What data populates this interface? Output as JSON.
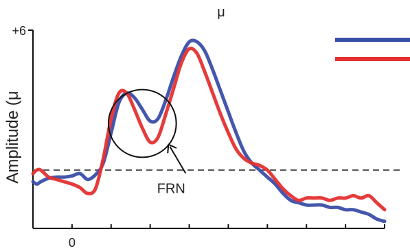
{
  "chart_data": {
    "type": "line",
    "title": "μ",
    "ylabel": "Amplitude (μ",
    "y_tick_labels": [
      {
        "value": 6,
        "label": "+6"
      }
    ],
    "x_tick_labels": [
      {
        "value": 0,
        "label": "0"
      }
    ],
    "xlim": [
      -100,
      800
    ],
    "ylim": [
      -2.5,
      6
    ],
    "baseline": {
      "value": 0,
      "style": "dashed"
    },
    "legend_position": "top-right",
    "series": [
      {
        "color": "#3a4ea8",
        "x": [
          -100,
          -90,
          -80,
          -60,
          -40,
          -20,
          0,
          20,
          40,
          60,
          80,
          100,
          120,
          140,
          160,
          180,
          200,
          220,
          240,
          260,
          280,
          300,
          320,
          340,
          360,
          380,
          400,
          420,
          440,
          460,
          480,
          500,
          520,
          540,
          560,
          580,
          600,
          620,
          640,
          660,
          680,
          700,
          720,
          740,
          760,
          780,
          800
        ],
        "y": [
          -0.5,
          -0.6,
          -0.5,
          -0.35,
          -0.3,
          -0.3,
          -0.25,
          -0.15,
          -0.4,
          -0.2,
          0.3,
          1.6,
          2.9,
          3.3,
          3.1,
          2.6,
          2.1,
          2.2,
          3.0,
          4.0,
          4.9,
          5.5,
          5.5,
          5.1,
          4.3,
          3.4,
          2.5,
          1.6,
          0.8,
          0.3,
          0.0,
          -0.3,
          -0.6,
          -1.0,
          -1.3,
          -1.4,
          -1.5,
          -1.5,
          -1.5,
          -1.6,
          -1.6,
          -1.7,
          -1.7,
          -1.8,
          -1.9,
          -2.1,
          -2.2
        ]
      },
      {
        "color": "#e53030",
        "x": [
          -100,
          -90,
          -80,
          -60,
          -40,
          -20,
          0,
          20,
          40,
          60,
          80,
          100,
          120,
          140,
          160,
          180,
          200,
          220,
          240,
          260,
          280,
          300,
          320,
          340,
          360,
          380,
          400,
          420,
          440,
          460,
          480,
          500,
          520,
          540,
          560,
          580,
          600,
          620,
          640,
          660,
          680,
          700,
          720,
          740,
          760,
          780,
          800
        ],
        "y": [
          -0.15,
          0.0,
          0.0,
          -0.3,
          -0.4,
          -0.5,
          -0.6,
          -0.75,
          -1.0,
          -0.8,
          0.5,
          2.2,
          3.3,
          3.3,
          2.6,
          1.8,
          1.2,
          1.4,
          2.4,
          3.5,
          4.6,
          5.2,
          5.0,
          4.2,
          3.3,
          2.4,
          1.6,
          0.9,
          0.5,
          0.3,
          0.2,
          0.0,
          -0.4,
          -0.8,
          -1.1,
          -1.3,
          -1.2,
          -1.2,
          -1.2,
          -1.3,
          -1.2,
          -1.2,
          -1.1,
          -1.2,
          -1.1,
          -1.4,
          -1.7
        ]
      }
    ],
    "annotations": [
      {
        "text": "FRN",
        "type": "circled-region-with-arrow",
        "x": 180,
        "y": 2.0,
        "rx": 60,
        "ry": 1.9
      }
    ]
  }
}
